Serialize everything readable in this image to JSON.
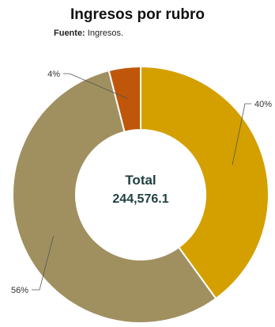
{
  "chart_data": {
    "type": "pie",
    "title": "Ingresos por rubro",
    "source_label": "Fuente:",
    "source_text": "Ingresos.",
    "center_title": "Total",
    "center_value": "244,576.1",
    "slices": [
      {
        "label": "40%",
        "value": 40,
        "color": "#d4a000"
      },
      {
        "label": "56%",
        "value": 56,
        "color": "#a09060"
      },
      {
        "label": "4%",
        "value": 4,
        "color": "#c0560a"
      }
    ]
  }
}
